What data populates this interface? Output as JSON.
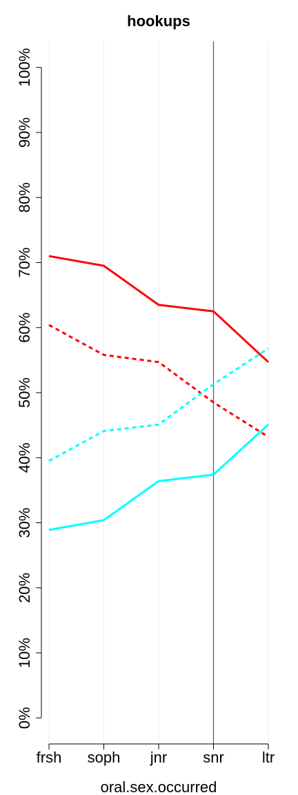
{
  "chart_data": {
    "type": "line",
    "title": "hookups",
    "x_label": "oral.sex.occurred",
    "categories": [
      "frsh",
      "soph",
      "jnr",
      "snr",
      "ltr"
    ],
    "series": [
      {
        "color": "#ff0000",
        "dashed": false,
        "values": [
          71,
          69.5,
          63.5,
          62.5,
          54.7
        ]
      },
      {
        "color": "#ff0000",
        "dashed": true,
        "values": [
          60.4,
          55.8,
          54.7,
          48.5,
          43.2
        ]
      },
      {
        "color": "#00ffff",
        "dashed": false,
        "values": [
          28.9,
          30.4,
          36.4,
          37.4,
          45.1
        ]
      },
      {
        "color": "#00ffff",
        "dashed": true,
        "values": [
          39.5,
          44.1,
          45.1,
          51.3,
          56.8
        ]
      }
    ],
    "ylim": [
      -4,
      104
    ],
    "yticks": [
      {
        "value": 0,
        "label": "0%"
      },
      {
        "value": 10,
        "label": "10%"
      },
      {
        "value": 20,
        "label": "20%"
      },
      {
        "value": 30,
        "label": "30%"
      },
      {
        "value": 40,
        "label": "40%"
      },
      {
        "value": 50,
        "label": "50%"
      },
      {
        "value": 60,
        "label": "60%"
      },
      {
        "value": 70,
        "label": "70%"
      },
      {
        "value": 80,
        "label": "80%"
      },
      {
        "value": 90,
        "label": "90%"
      },
      {
        "value": 100,
        "label": "100%"
      }
    ],
    "grid": true,
    "vline_index": 3
  }
}
